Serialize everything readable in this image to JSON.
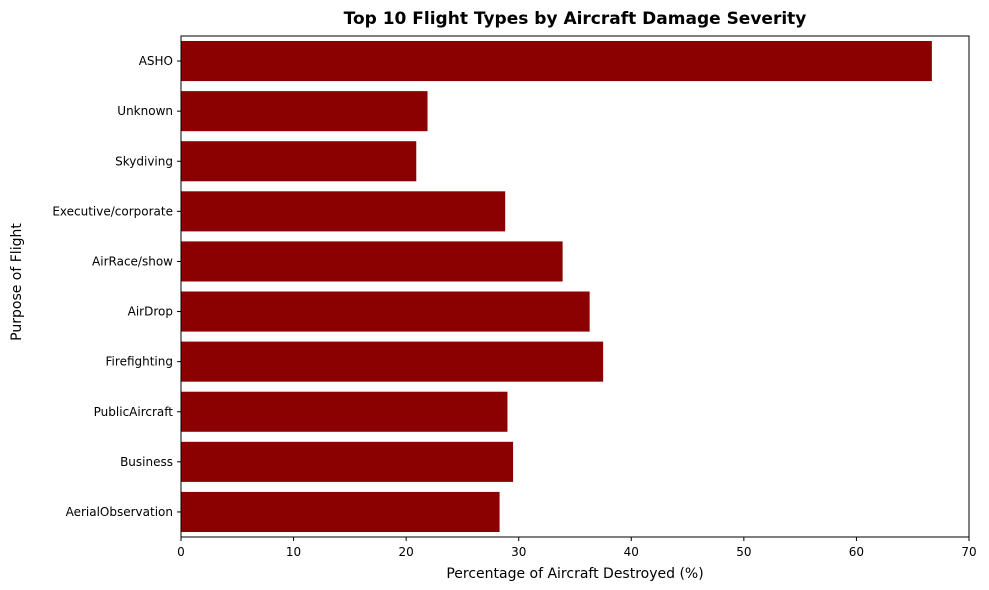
{
  "chart_data": {
    "type": "bar",
    "orientation": "horizontal",
    "title": "Top 10 Flight Types by Aircraft Damage Severity",
    "xlabel": "Percentage of Aircraft Destroyed (%)",
    "ylabel": "Purpose of Flight",
    "xlim": [
      0,
      70
    ],
    "xticks": [
      0,
      10,
      20,
      30,
      40,
      50,
      60,
      70
    ],
    "categories": [
      "AerialObservation",
      "Business",
      "PublicAircraft",
      "Firefighting",
      "AirDrop",
      "AirRace/show",
      "Executive/corporate",
      "Skydiving",
      "Unknown",
      "ASHO"
    ],
    "values": [
      28.3,
      29.5,
      29.0,
      37.5,
      36.3,
      33.9,
      28.8,
      20.9,
      21.9,
      66.7
    ],
    "bar_color": "#8b0000",
    "grid": false,
    "legend": "none"
  }
}
